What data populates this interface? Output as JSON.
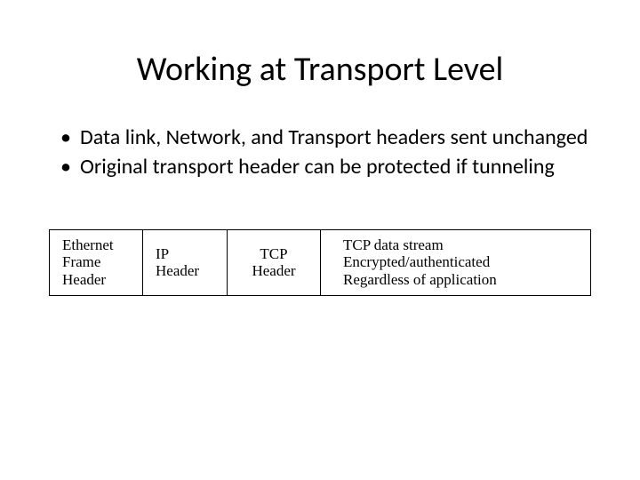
{
  "title": "Working at Transport Level",
  "bullets": [
    "Data link, Network, and Transport headers sent unchanged",
    "Original transport header can be protected if tunneling"
  ],
  "diagram": {
    "cells": [
      {
        "text": "Ethernet\nFrame\nHeader"
      },
      {
        "text": "IP\nHeader"
      },
      {
        "text": "TCP\nHeader"
      },
      {
        "text": "TCP data stream\nEncrypted/authenticated\nRegardless of application"
      }
    ],
    "border_color": "#000000",
    "background": "#ffffff",
    "cell_font_family": "Times New Roman",
    "cell_font_size_pt": 13
  },
  "colors": {
    "background": "#ffffff",
    "text": "#000000"
  },
  "fonts": {
    "title": "Calibri",
    "body": "Calibri",
    "diagram": "Times New Roman"
  }
}
